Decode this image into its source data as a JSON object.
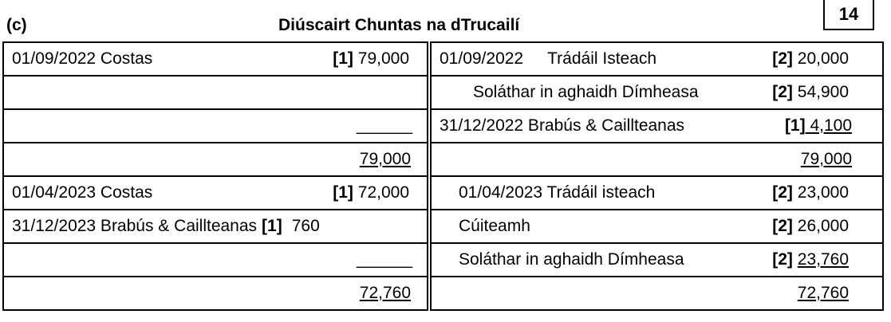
{
  "header": {
    "part_label": "(c)",
    "title": "Diúscairt Chuntas na dTrucailí",
    "marks": "14"
  },
  "rows": [
    {
      "left": {
        "label": "01/09/2022 Costas",
        "mark": "[1]",
        "amount": "79,000"
      },
      "right": {
        "date": "01/09/2022",
        "label": "Trádáil Isteach",
        "mark": "[2]",
        "amount": "20,000"
      }
    },
    {
      "left": {},
      "right": {
        "label": "Soláthar in aghaidh Dímheasa",
        "mark": "[2]",
        "amount": "54,900"
      }
    },
    {
      "left": {
        "blank": "______"
      },
      "right": {
        "label": "31/12/2022 Brabús & Caillteanas",
        "mark": "[1]",
        "amount": " 4,100"
      }
    },
    {
      "left": {
        "total": "79,000"
      },
      "right": {
        "total": "79,000"
      }
    },
    {
      "left": {
        "label": "01/04/2023 Costas",
        "mark": "[1]",
        "amount": "72,000"
      },
      "right": {
        "label": "01/04/2023 Trádáil isteach",
        "mark": "[2]",
        "amount": "23,000"
      }
    },
    {
      "left": {
        "label": "31/12/2023 Brabús & Caillteanas",
        "mark": "[1]",
        "amount": "760"
      },
      "right": {
        "label": "Cúiteamh",
        "mark": "[2]",
        "amount": "26,000"
      }
    },
    {
      "left": {
        "blank": "______"
      },
      "right": {
        "label": "Soláthar in aghaidh Dímheasa",
        "mark": "[2]",
        "amount": "23,760"
      }
    },
    {
      "left": {
        "total": "72,760"
      },
      "right": {
        "total": "72,760"
      }
    }
  ]
}
